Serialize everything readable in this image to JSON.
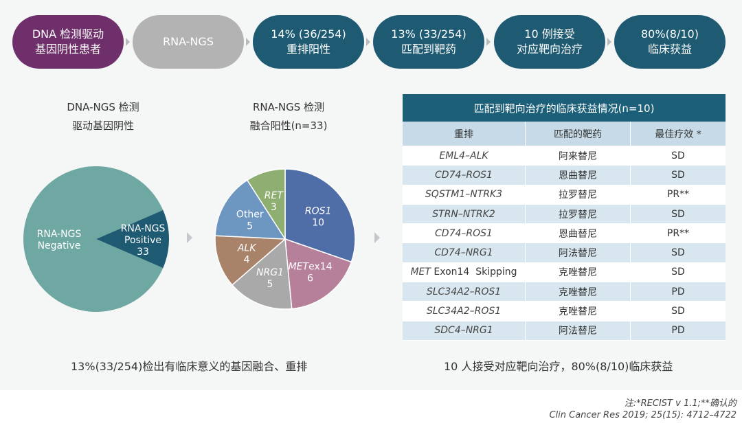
{
  "flow": [
    {
      "line1": "DNA 检测驱动",
      "line2": "基因阴性患者",
      "color": "#6f2f6b"
    },
    {
      "line1": "RNA-NGS",
      "line2": "",
      "color": "#b3b3b3"
    },
    {
      "line1": "14% (36/254)",
      "line2": "重排阳性",
      "color": "#1f5a73"
    },
    {
      "line1": "13% (33/254)",
      "line2": "匹配到靶药",
      "color": "#1f5a73"
    },
    {
      "line1": "10 例接受",
      "line2": "对应靶向治疗",
      "color": "#1f5a73"
    },
    {
      "line1": "80%(8/10)",
      "line2": "临床获益",
      "color": "#1f5a73"
    }
  ],
  "left_caption": {
    "line1": "DNA-NGS 检测",
    "line2": "驱动基因阴性"
  },
  "mid_caption": {
    "line1": "RNA-NGS 检测",
    "line2": "融合阳性(n=33)"
  },
  "chart_data": [
    {
      "type": "pie",
      "slices": [
        {
          "label": "RNA-NGS Negative",
          "label_lines": [
            "RNA-NGS",
            "Negative"
          ],
          "value": 221,
          "value_text": "",
          "color": "#6fa8a3"
        },
        {
          "label": "RNA-NGS Positive",
          "label_lines": [
            "RNA-NGS",
            "Positive"
          ],
          "value": 33,
          "value_text": "33",
          "color": "#1f5a73"
        }
      ]
    },
    {
      "type": "pie",
      "slices": [
        {
          "label": "ROS1",
          "value": 10,
          "italic": true,
          "color": "#4f6ea8"
        },
        {
          "label": "METex14",
          "label_italic_part": "MET",
          "label_plain_part": "ex14",
          "value": 6,
          "color": "#b67f9a"
        },
        {
          "label": "NRG1",
          "value": 5,
          "italic": true,
          "color": "#a9a9a9"
        },
        {
          "label": "ALK",
          "value": 4,
          "italic": true,
          "color": "#a88369"
        },
        {
          "label": "Other",
          "value": 5,
          "italic": false,
          "color": "#6d96c0"
        },
        {
          "label": "RET",
          "value": 3,
          "italic": true,
          "color": "#8fae71"
        }
      ]
    },
    {
      "type": "table",
      "title": "匹配到靶向治疗的临床获益情况(n=10)",
      "columns": [
        "重排",
        "匹配的靶药",
        "最佳疗效 *"
      ],
      "rows": [
        {
          "gene": "EML4–ALK",
          "drug": "阿来替尼",
          "response": "SD"
        },
        {
          "gene": "CD74–ROS1",
          "drug": "恩曲替尼",
          "response": "SD"
        },
        {
          "gene": "SQSTM1–NTRK3",
          "drug": "拉罗替尼",
          "response": "PR**"
        },
        {
          "gene": "STRN–NTRK2",
          "drug": "拉罗替尼",
          "response": "SD"
        },
        {
          "gene": "CD74–ROS1",
          "drug": "恩曲替尼",
          "response": "PR**"
        },
        {
          "gene": "CD74–NRG1",
          "drug": "阿法替尼",
          "response": "SD"
        },
        {
          "gene_italic": "MET",
          "gene_plain": " Exon14  Skipping",
          "drug": "克唑替尼",
          "response": "SD"
        },
        {
          "gene": "SLC34A2–ROS1",
          "drug": "克唑替尼",
          "response": "PD"
        },
        {
          "gene": "SLC34A2–ROS1",
          "drug": "克唑替尼",
          "response": "SD"
        },
        {
          "gene": "SDC4–NRG1",
          "drug": "阿法替尼",
          "response": "PD"
        }
      ]
    }
  ],
  "bottom_left": "13%(33/254)检出有临床意义的基因融合、重排",
  "bottom_right": "10 人接受对应靶向治疗，80%(8/10)临床获益",
  "note": "注:*RECIST v 1.1;**确认的",
  "citation": "Clin Cancer Res 2019; 25(15): 4712–4722"
}
